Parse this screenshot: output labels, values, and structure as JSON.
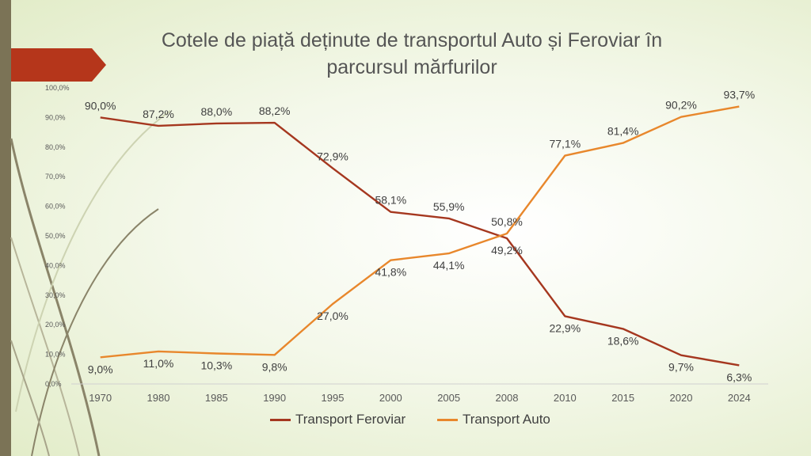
{
  "title": "Cotele de piață deținute de transportul Auto și Feroviar în parcursul mărfurilor",
  "colors": {
    "feroviar": "#a5371f",
    "auto": "#e8872c",
    "accent_tab": "#b5361b",
    "side_bar": "#7b7356",
    "axis_text": "#595959",
    "label_text": "#404040"
  },
  "chart_data": {
    "type": "line",
    "categories": [
      "1970",
      "1980",
      "1985",
      "1990",
      "1995",
      "2000",
      "2005",
      "2008",
      "2010",
      "2015",
      "2020",
      "2024"
    ],
    "ylim": [
      0,
      100
    ],
    "yticks": [
      "0,0%",
      "10,0%",
      "20,0%",
      "30,0%",
      "40,0%",
      "50,0%",
      "60,0%",
      "70,0%",
      "80,0%",
      "90,0%",
      "100,0%"
    ],
    "grid": false,
    "legend": "bottom",
    "series": [
      {
        "name": "Transport Feroviar",
        "values": [
          90.0,
          87.2,
          88.0,
          88.2,
          72.9,
          58.1,
          55.9,
          49.2,
          22.9,
          18.6,
          9.7,
          6.3
        ],
        "labels": [
          "90,0%",
          "87,2%",
          "88,0%",
          "88,2%",
          "72,9%",
          "58,1%",
          "55,9%",
          "49,2%",
          "22,9%",
          "18,6%",
          "9,7%",
          "6,3%"
        ]
      },
      {
        "name": "Transport Auto",
        "values": [
          9.0,
          11.0,
          10.3,
          9.8,
          27.0,
          41.8,
          44.1,
          50.8,
          77.1,
          81.4,
          90.2,
          93.7
        ],
        "labels": [
          "9,0%",
          "11,0%",
          "10,3%",
          "9,8%",
          "27,0%",
          "41,8%",
          "44,1%",
          "50,8%",
          "77,1%",
          "81,4%",
          "90,2%",
          "93,7%"
        ]
      }
    ]
  }
}
